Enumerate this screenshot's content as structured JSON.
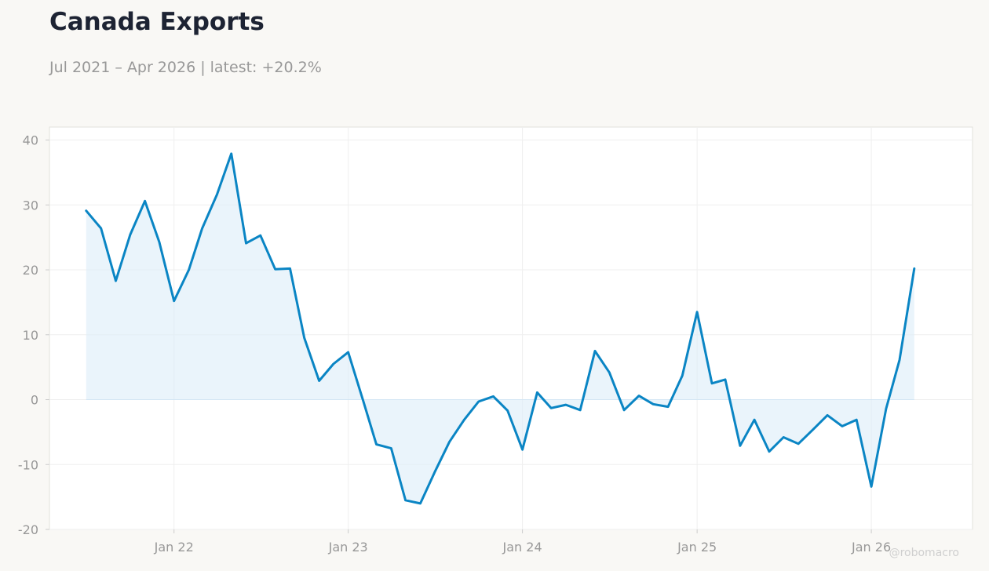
{
  "header": {
    "title": "Canada Exports",
    "subtitle": "Jul 2021 – Apr 2026 | latest: +20.2%"
  },
  "watermark": "@robomacro",
  "colors": {
    "line": "#0a85c4",
    "fill": "#dcecf8",
    "background": "#f9f8f5",
    "plot_background": "#ffffff",
    "grid": "#efefef",
    "title": "#1d2333",
    "muted_text": "#989898"
  },
  "chart_data": {
    "type": "area",
    "title": "Canada Exports",
    "subtitle": "Jul 2021 – Apr 2026 | latest: +20.2%",
    "xlabel": "",
    "ylabel": "",
    "grid": true,
    "legend": "none",
    "x_start": "2021-07",
    "x_end": "2026-04",
    "xlim": [
      "2021-04-15",
      "2026-08-01"
    ],
    "ylim": [
      -20,
      42
    ],
    "y_ticks": [
      40,
      30,
      20,
      10,
      0,
      -10,
      -20
    ],
    "y_tick_labels": [
      "40",
      "30",
      "20",
      "10",
      "0",
      "-10",
      "-20"
    ],
    "x_ticks": [
      "2022-01",
      "2023-01",
      "2024-01",
      "2025-01",
      "2026-01"
    ],
    "x_tick_labels": [
      "Jan 22",
      "Jan 23",
      "Jan 24",
      "Jan 25",
      "Jan 26"
    ],
    "series": [
      {
        "values": [
          29.1,
          26.4,
          18.3,
          25.4,
          30.6,
          24.3,
          15.2,
          20.0,
          26.4,
          31.6,
          37.9,
          24.1,
          25.3,
          20.1,
          20.2,
          9.5,
          2.9,
          5.5,
          7.3,
          -0.1,
          -6.9,
          -7.5,
          -15.5,
          -16.0,
          -11.2,
          -6.5,
          -3.1,
          -0.3,
          0.5,
          -1.7,
          -7.7,
          1.1,
          -1.3,
          -0.8,
          -1.6,
          7.5,
          4.2,
          -1.6,
          0.6,
          -0.7,
          -1.1,
          3.7,
          13.5,
          2.5,
          3.1,
          -7.1,
          -3.1,
          -8.0,
          -5.8,
          -6.8,
          -4.6,
          -2.4,
          -4.1,
          -3.1,
          -13.4,
          -1.4,
          6.1,
          20.2
        ]
      }
    ]
  }
}
